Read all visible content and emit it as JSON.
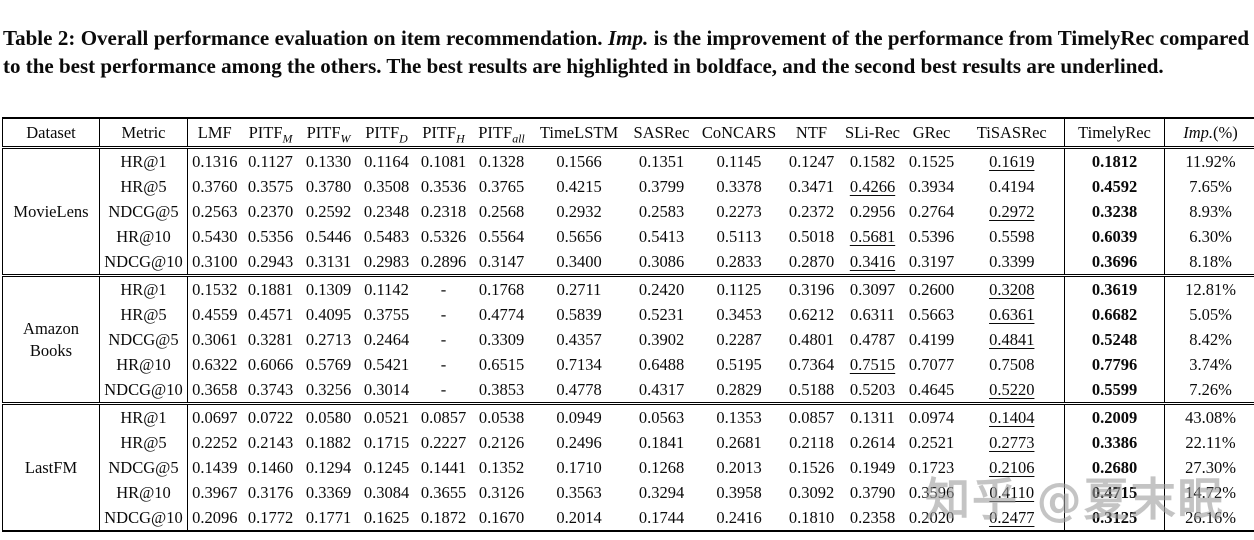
{
  "caption": {
    "part1": "Table 2: Overall performance evaluation on item recommendation. ",
    "imp_term": "Imp.",
    "part2": " is the improvement of the performance from TimelyRec compared to the best performance among the others. The best results are highlighted in boldface, and the second best results are underlined."
  },
  "table": {
    "header": {
      "dataset": "Dataset",
      "metric": "Metric",
      "methods": [
        {
          "label": "LMF"
        },
        {
          "label": "PITF",
          "sub": "M"
        },
        {
          "label": "PITF",
          "sub": "W"
        },
        {
          "label": "PITF",
          "sub": "D"
        },
        {
          "label": "PITF",
          "sub": "H"
        },
        {
          "label": "PITF",
          "sub": "all"
        },
        {
          "label": "TimeLSTM"
        },
        {
          "label": "SASRec"
        },
        {
          "label": "CoNCARS"
        },
        {
          "label": "NTF"
        },
        {
          "label": "SLi-Rec"
        },
        {
          "label": "GRec"
        },
        {
          "label": "TiSASRec"
        }
      ],
      "timelyrec": "TimelyRec",
      "imp_italic": "Imp.",
      "imp_rest": "(%)"
    },
    "groups": [
      {
        "dataset": "MovieLens",
        "rows": [
          {
            "metric": "HR@1",
            "values": [
              "0.1316",
              "0.1127",
              "0.1330",
              "0.1164",
              "0.1081",
              "0.1328",
              "0.1566",
              "0.1351",
              "0.1145",
              "0.1247",
              "0.1582",
              "0.1525",
              "0.1619"
            ],
            "underline": 12,
            "timelyrec": "0.1812",
            "imp": "11.92%"
          },
          {
            "metric": "HR@5",
            "values": [
              "0.3760",
              "0.3575",
              "0.3780",
              "0.3508",
              "0.3536",
              "0.3765",
              "0.4215",
              "0.3799",
              "0.3378",
              "0.3471",
              "0.4266",
              "0.3934",
              "0.4194"
            ],
            "underline": 10,
            "timelyrec": "0.4592",
            "imp": "7.65%"
          },
          {
            "metric": "NDCG@5",
            "values": [
              "0.2563",
              "0.2370",
              "0.2592",
              "0.2348",
              "0.2318",
              "0.2568",
              "0.2932",
              "0.2583",
              "0.2273",
              "0.2372",
              "0.2956",
              "0.2764",
              "0.2972"
            ],
            "underline": 12,
            "timelyrec": "0.3238",
            "imp": "8.93%"
          },
          {
            "metric": "HR@10",
            "values": [
              "0.5430",
              "0.5356",
              "0.5446",
              "0.5483",
              "0.5326",
              "0.5564",
              "0.5656",
              "0.5413",
              "0.5113",
              "0.5018",
              "0.5681",
              "0.5396",
              "0.5598"
            ],
            "underline": 10,
            "timelyrec": "0.6039",
            "imp": "6.30%"
          },
          {
            "metric": "NDCG@10",
            "values": [
              "0.3100",
              "0.2943",
              "0.3131",
              "0.2983",
              "0.2896",
              "0.3147",
              "0.3400",
              "0.3086",
              "0.2833",
              "0.2870",
              "0.3416",
              "0.3197",
              "0.3399"
            ],
            "underline": 10,
            "timelyrec": "0.3696",
            "imp": "8.18%"
          }
        ]
      },
      {
        "dataset": "Amazon\nBooks",
        "rows": [
          {
            "metric": "HR@1",
            "values": [
              "0.1532",
              "0.1881",
              "0.1309",
              "0.1142",
              "-",
              "0.1768",
              "0.2711",
              "0.2420",
              "0.1125",
              "0.3196",
              "0.3097",
              "0.2600",
              "0.3208"
            ],
            "underline": 12,
            "timelyrec": "0.3619",
            "imp": "12.81%"
          },
          {
            "metric": "HR@5",
            "values": [
              "0.4559",
              "0.4571",
              "0.4095",
              "0.3755",
              "-",
              "0.4774",
              "0.5839",
              "0.5231",
              "0.3453",
              "0.6212",
              "0.6311",
              "0.5663",
              "0.6361"
            ],
            "underline": 12,
            "timelyrec": "0.6682",
            "imp": "5.05%"
          },
          {
            "metric": "NDCG@5",
            "values": [
              "0.3061",
              "0.3281",
              "0.2713",
              "0.2464",
              "-",
              "0.3309",
              "0.4357",
              "0.3902",
              "0.2287",
              "0.4801",
              "0.4787",
              "0.4199",
              "0.4841"
            ],
            "underline": 12,
            "timelyrec": "0.5248",
            "imp": "8.42%"
          },
          {
            "metric": "HR@10",
            "values": [
              "0.6322",
              "0.6066",
              "0.5769",
              "0.5421",
              "-",
              "0.6515",
              "0.7134",
              "0.6488",
              "0.5195",
              "0.7364",
              "0.7515",
              "0.7077",
              "0.7508"
            ],
            "underline": 10,
            "timelyrec": "0.7796",
            "imp": "3.74%"
          },
          {
            "metric": "NDCG@10",
            "values": [
              "0.3658",
              "0.3743",
              "0.3256",
              "0.3014",
              "-",
              "0.3853",
              "0.4778",
              "0.4317",
              "0.2829",
              "0.5188",
              "0.5203",
              "0.4645",
              "0.5220"
            ],
            "underline": 12,
            "timelyrec": "0.5599",
            "imp": "7.26%"
          }
        ]
      },
      {
        "dataset": "LastFM",
        "rows": [
          {
            "metric": "HR@1",
            "values": [
              "0.0697",
              "0.0722",
              "0.0580",
              "0.0521",
              "0.0857",
              "0.0538",
              "0.0949",
              "0.0563",
              "0.1353",
              "0.0857",
              "0.1311",
              "0.0974",
              "0.1404"
            ],
            "underline": 12,
            "timelyrec": "0.2009",
            "imp": "43.08%"
          },
          {
            "metric": "HR@5",
            "values": [
              "0.2252",
              "0.2143",
              "0.1882",
              "0.1715",
              "0.2227",
              "0.2126",
              "0.2496",
              "0.1841",
              "0.2681",
              "0.2118",
              "0.2614",
              "0.2521",
              "0.2773"
            ],
            "underline": 12,
            "timelyrec": "0.3386",
            "imp": "22.11%"
          },
          {
            "metric": "NDCG@5",
            "values": [
              "0.1439",
              "0.1460",
              "0.1294",
              "0.1245",
              "0.1441",
              "0.1352",
              "0.1710",
              "0.1268",
              "0.2013",
              "0.1526",
              "0.1949",
              "0.1723",
              "0.2106"
            ],
            "underline": 12,
            "timelyrec": "0.2680",
            "imp": "27.30%"
          },
          {
            "metric": "HR@10",
            "values": [
              "0.3967",
              "0.3176",
              "0.3369",
              "0.3084",
              "0.3655",
              "0.3126",
              "0.3563",
              "0.3294",
              "0.3958",
              "0.3092",
              "0.3790",
              "0.3596",
              "0.4110"
            ],
            "underline": 12,
            "timelyrec": "0.4715",
            "imp": "14.72%"
          },
          {
            "metric": "NDCG@10",
            "values": [
              "0.2096",
              "0.1772",
              "0.1771",
              "0.1625",
              "0.1872",
              "0.1670",
              "0.2014",
              "0.1744",
              "0.2416",
              "0.1810",
              "0.2358",
              "0.2020",
              "0.2477"
            ],
            "underline": 12,
            "timelyrec": "0.3125",
            "imp": "26.16%"
          }
        ]
      }
    ]
  },
  "watermark": {
    "text": "知乎 @夏末眠"
  }
}
